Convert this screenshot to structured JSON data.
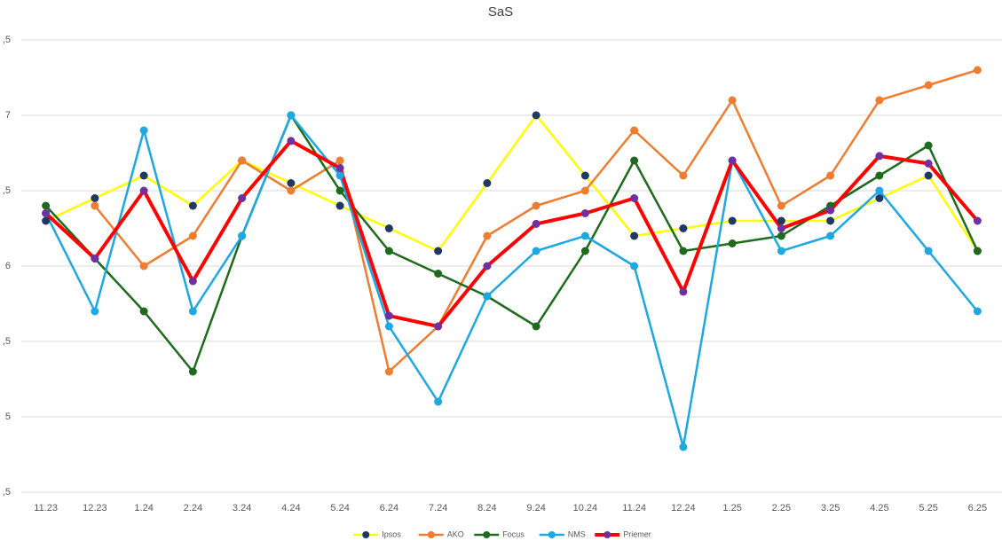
{
  "chart_data": {
    "type": "line",
    "title": "SaS",
    "categories": [
      "11.23",
      "12.23",
      "1.24",
      "2.24",
      "3.24",
      "4.24",
      "5.24",
      "6.24",
      "7.24",
      "8.24",
      "9.24",
      "10.24",
      "11.24",
      "12.24",
      "1.25",
      "2.25",
      "3.25",
      "4.25",
      "5.25",
      "6.25"
    ],
    "series": [
      {
        "name": "Ipsos",
        "color": "#ffff00",
        "marker_color": "#1f3864",
        "values": [
          6.3,
          6.45,
          6.6,
          6.4,
          6.7,
          6.55,
          6.4,
          6.25,
          6.1,
          6.55,
          7.0,
          6.6,
          6.2,
          6.25,
          6.3,
          6.3,
          6.3,
          6.45,
          6.6,
          6.1
        ]
      },
      {
        "name": "AKO",
        "color": "#ed7d31",
        "marker_color": "#ed7d31",
        "values": [
          null,
          6.4,
          6.0,
          6.2,
          6.7,
          6.5,
          6.7,
          5.3,
          5.6,
          6.2,
          6.4,
          6.5,
          6.9,
          6.6,
          7.1,
          6.4,
          6.6,
          7.1,
          7.2,
          7.3
        ]
      },
      {
        "name": "Focus",
        "color": "#1e6b1e",
        "marker_color": "#1e6b1e",
        "values": [
          6.4,
          6.05,
          5.7,
          5.3,
          6.2,
          7.0,
          6.5,
          6.1,
          5.95,
          5.8,
          5.6,
          6.1,
          6.7,
          6.1,
          6.15,
          6.2,
          6.4,
          6.6,
          6.8,
          6.1
        ]
      },
      {
        "name": "NMS",
        "color": "#1ea7e1",
        "marker_color": "#1ea7e1",
        "values": [
          6.35,
          5.7,
          6.9,
          5.7,
          6.2,
          7.0,
          6.6,
          5.6,
          5.1,
          5.8,
          6.1,
          6.2,
          6.0,
          4.8,
          6.7,
          6.1,
          6.2,
          6.5,
          6.1,
          5.7
        ]
      },
      {
        "name": "Priemer",
        "color": "#ff0000",
        "marker_color": "#7030a0",
        "width": 4,
        "values": [
          6.35,
          6.05,
          6.5,
          5.9,
          6.45,
          6.83,
          6.65,
          5.67,
          5.6,
          6.0,
          6.28,
          6.35,
          6.45,
          5.83,
          6.7,
          6.25,
          6.37,
          6.73,
          6.68,
          6.3
        ]
      }
    ],
    "ylim": [
      4.5,
      7.5
    ],
    "yticks": [
      {
        "value": 4.5,
        "label": ",5"
      },
      5,
      {
        "value": 5.5,
        "label": ",5"
      },
      6,
      {
        "value": 6.5,
        "label": ",5"
      },
      7,
      {
        "value": 7.5,
        "label": ",5"
      }
    ],
    "grid": true,
    "legend": "bottom"
  }
}
